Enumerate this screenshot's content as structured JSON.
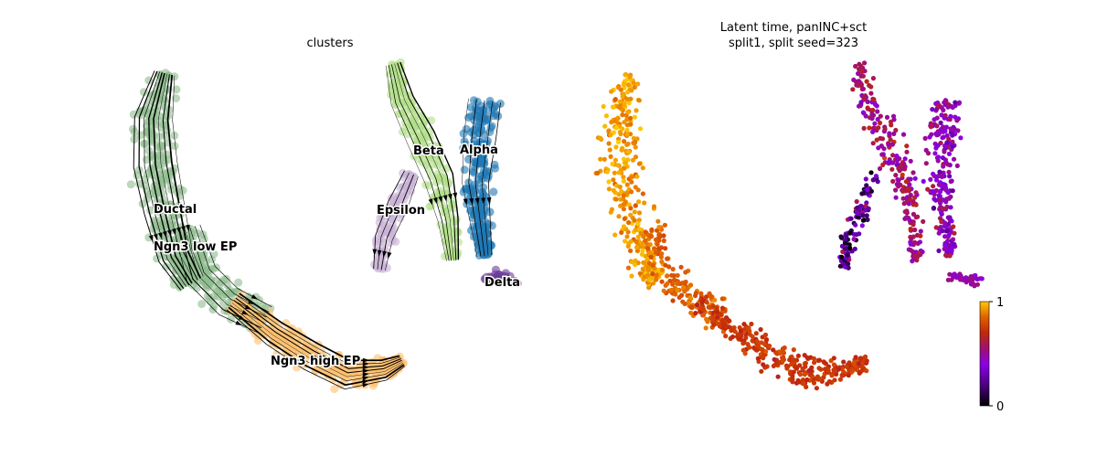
{
  "chart_data": [
    {
      "type": "scatter",
      "title": "clusters",
      "subtitle": "",
      "legend": "on data",
      "grid": false,
      "clusters": [
        {
          "name": "Ductal",
          "color": "#8fbc8f"
        },
        {
          "name": "Ngn3 low EP",
          "color": "#8fbc8f"
        },
        {
          "name": "Ngn3 high EP",
          "color": "#fdbf6f"
        },
        {
          "name": "Epsilon",
          "color": "#cab2d6"
        },
        {
          "name": "Beta",
          "color": "#b2df8a"
        },
        {
          "name": "Alpha",
          "color": "#1f78b4"
        },
        {
          "name": "Delta",
          "color": "#6a3d9a"
        }
      ],
      "annotations": [
        "Ductal",
        "Ngn3 low EP",
        "Ngn3 high EP",
        "Epsilon",
        "Beta",
        "Alpha",
        "Delta"
      ],
      "overlay": "velocity streamlines with arrows"
    },
    {
      "type": "scatter",
      "title": "Latent time, panINC+sct",
      "subtitle": "split1, split seed=323",
      "colorbar": {
        "min": 0,
        "max": 1,
        "ticks": [
          "0",
          "1"
        ],
        "colormap": "gnuplot"
      },
      "grid": false
    }
  ]
}
